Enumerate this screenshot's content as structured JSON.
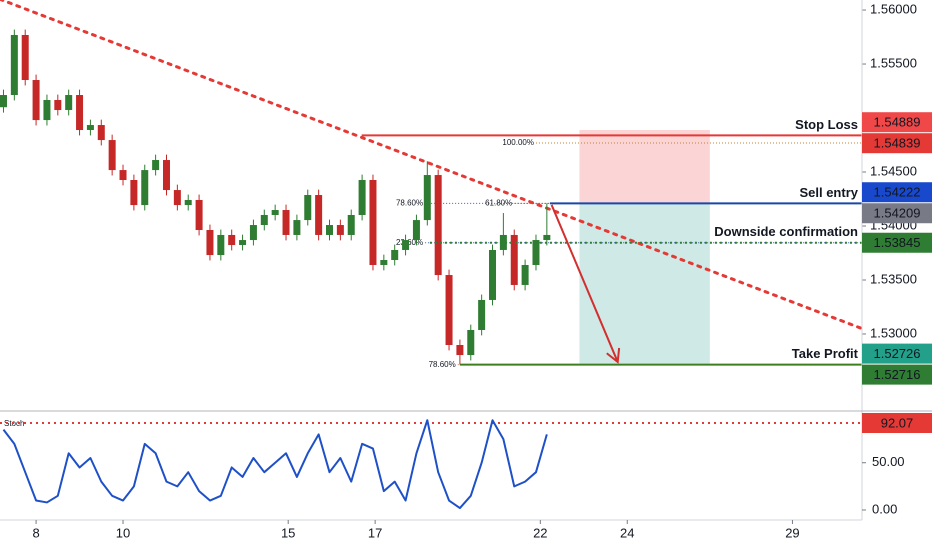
{
  "chart_data": {
    "type": "candlestick",
    "x": [
      -0.75,
      -0.5,
      -0.25,
      0,
      0.25,
      0.5,
      0.75,
      1,
      1.25,
      1.5,
      1.75,
      2,
      2.25,
      2.5,
      2.75,
      3,
      3.25,
      3.5,
      3.75,
      4,
      4.25,
      4.5,
      4.75,
      5,
      5.25,
      5.5,
      5.75,
      6,
      6.25,
      6.5,
      6.75,
      7,
      7.25,
      7.5,
      7.75,
      8,
      8.25,
      8.5,
      8.75,
      9,
      9.25,
      9.5,
      9.75,
      10,
      10.25,
      10.5,
      10.75,
      11,
      11.25,
      11.5,
      11.75
    ],
    "open": [
      1.551,
      1.55213,
      1.55769,
      1.55352,
      1.54981,
      1.55167,
      1.55074,
      1.55213,
      1.54889,
      1.54935,
      1.54796,
      1.54518,
      1.54426,
      1.54194,
      1.54518,
      1.54611,
      1.54333,
      1.54194,
      1.54241,
      1.53963,
      1.53731,
      1.53917,
      1.53824,
      1.5387,
      1.54009,
      1.54102,
      1.54148,
      1.53917,
      1.54055,
      1.54287,
      1.53917,
      1.54009,
      1.53917,
      1.54102,
      1.54426,
      1.53639,
      1.53685,
      1.53778,
      1.5387,
      1.54055,
      1.54472,
      1.53546,
      1.52898,
      1.52805,
      1.53037,
      1.53315,
      1.53778,
      1.53917,
      1.53454,
      1.53639,
      1.5387
    ],
    "high": [
      1.55263,
      1.55819,
      1.55819,
      1.55402,
      1.55217,
      1.55217,
      1.55263,
      1.55263,
      1.54985,
      1.54985,
      1.54846,
      1.54568,
      1.54476,
      1.54568,
      1.54661,
      1.54661,
      1.54383,
      1.54291,
      1.54291,
      1.54013,
      1.53967,
      1.53967,
      1.5392,
      1.54059,
      1.54152,
      1.54198,
      1.54198,
      1.54105,
      1.54337,
      1.54337,
      1.54059,
      1.54059,
      1.54152,
      1.54476,
      1.54476,
      1.53735,
      1.53828,
      1.5392,
      1.54105,
      1.546,
      1.54522,
      1.53596,
      1.52948,
      1.53087,
      1.53365,
      1.53828,
      1.5412,
      1.53967,
      1.53689,
      1.5392,
      1.54209
    ],
    "low": [
      1.5505,
      1.55163,
      1.55302,
      1.54931,
      1.54931,
      1.55024,
      1.55024,
      1.54839,
      1.54839,
      1.54746,
      1.54468,
      1.54376,
      1.54144,
      1.54144,
      1.54468,
      1.54283,
      1.54144,
      1.54144,
      1.53913,
      1.53681,
      1.53681,
      1.53774,
      1.53774,
      1.5382,
      1.53959,
      1.54052,
      1.53867,
      1.53867,
      1.54005,
      1.53867,
      1.53867,
      1.53867,
      1.53867,
      1.54052,
      1.53589,
      1.53589,
      1.53635,
      1.53728,
      1.5382,
      1.54005,
      1.53496,
      1.52848,
      1.52716,
      1.52755,
      1.52987,
      1.53265,
      1.53728,
      1.53404,
      1.53404,
      1.53589,
      1.5382
    ],
    "close": [
      1.55213,
      1.55769,
      1.55352,
      1.54981,
      1.55167,
      1.55074,
      1.55213,
      1.54889,
      1.54935,
      1.54796,
      1.54518,
      1.54426,
      1.54194,
      1.54518,
      1.54611,
      1.54333,
      1.54194,
      1.54241,
      1.53963,
      1.53731,
      1.53917,
      1.53824,
      1.5387,
      1.54009,
      1.54102,
      1.54148,
      1.53917,
      1.54055,
      1.54287,
      1.53917,
      1.54009,
      1.53917,
      1.54102,
      1.54426,
      1.53639,
      1.53685,
      1.53778,
      1.5387,
      1.54055,
      1.54472,
      1.53546,
      1.52898,
      1.52805,
      1.53037,
      1.53315,
      1.53778,
      1.53917,
      1.53454,
      1.53639,
      1.5387,
      1.53917
    ],
    "up_color": "#2e7d32",
    "down_color": "#c62828",
    "xlim": [
      -0.83,
      19
    ],
    "ylim": [
      1.52296,
      1.56093
    ],
    "xticks": [
      {
        "value": 0,
        "label": "8"
      },
      {
        "value": 2,
        "label": "10"
      },
      {
        "value": 5.8,
        "label": "15"
      },
      {
        "value": 7.8,
        "label": "17"
      },
      {
        "value": 11.6,
        "label": "22"
      },
      {
        "value": 13.6,
        "label": "24"
      },
      {
        "value": 17.4,
        "label": "29"
      }
    ],
    "yticks": [
      {
        "value": 1.56,
        "label": "1.56000"
      },
      {
        "value": 1.555,
        "label": "1.55500"
      },
      {
        "value": 1.545,
        "label": "1.54500"
      },
      {
        "value": 1.54,
        "label": "1.54000"
      },
      {
        "value": 1.535,
        "label": "1.53500"
      },
      {
        "value": 1.53,
        "label": "1.53000"
      }
    ],
    "trendline": {
      "start": [
        -0.83,
        1.561
      ],
      "end": [
        19,
        1.5305
      ],
      "color": "#e53935"
    },
    "arrow": {
      "start": [
        11.86,
        1.54195
      ],
      "end": [
        13.38,
        1.52741
      ],
      "color": "#d32f2f"
    },
    "zones": [
      {
        "x0": 12.5,
        "x1": 15.5,
        "from": 1.54209,
        "to": 1.54889,
        "color": "#fbd5d5"
      },
      {
        "x0": 12.5,
        "x1": 15.5,
        "from": 1.52726,
        "to": 1.54209,
        "color": "#cfeae6"
      }
    ],
    "fib": [
      {
        "label": "100.00%",
        "value": 1.54769,
        "x": 11.5,
        "color": "#c77c2e"
      },
      {
        "label": "78.60%",
        "value": 1.54209,
        "x": 8.95,
        "color": "#3a5fa8"
      },
      {
        "label": "61.80%",
        "value": 1.54209,
        "x": 11.0,
        "color": "#c77c2e"
      },
      {
        "label": "23.60%",
        "value": 1.53845,
        "x": 8.95,
        "color": "#3a5fa8"
      },
      {
        "label": "78.60%",
        "value": 1.52716,
        "x": 9.7,
        "color": "#e57373"
      }
    ],
    "levels": [
      {
        "name": "Stop Loss",
        "value": 1.54839,
        "start": 7.49,
        "color": "#e53935",
        "style": "solid"
      },
      {
        "name": "Sell entry",
        "value": 1.54209,
        "start": 11.82,
        "color": "#1848a8",
        "style": "solid"
      },
      {
        "name": "Downside confirmation",
        "value": 1.53845,
        "start": 9.06,
        "color": "#2e7d32",
        "style": "dotted"
      },
      {
        "name": "Take Profit",
        "value": 1.52716,
        "start": 9.75,
        "color": "#3d7f1f",
        "style": "solid"
      }
    ],
    "price_tags": [
      {
        "value": 1.54889,
        "color": "#f04848"
      },
      {
        "value": 1.54839,
        "color": "#e53935"
      },
      {
        "value": 1.54222,
        "color": "#1848cc"
      },
      {
        "value": 1.54209,
        "color": "#787b86"
      },
      {
        "value": 1.53845,
        "color": "#2e7d32"
      },
      {
        "value": 1.52726,
        "color": "#22a08a"
      },
      {
        "value": 1.52716,
        "color": "#2e7d32"
      }
    ],
    "oscillator": {
      "name": "Stoch",
      "values": [
        85,
        70,
        40,
        10,
        8,
        15,
        60,
        45,
        55,
        30,
        15,
        10,
        25,
        70,
        60,
        30,
        25,
        40,
        20,
        10,
        15,
        45,
        35,
        55,
        40,
        50,
        60,
        35,
        60,
        80,
        40,
        55,
        30,
        70,
        65,
        20,
        30,
        10,
        60,
        95,
        40,
        10,
        2,
        15,
        50,
        95,
        75,
        25,
        30,
        40,
        80
      ],
      "color": "#1e50c8",
      "ylim": [
        -10.6,
        103.7
      ],
      "yticks": [
        {
          "value": 50,
          "label": "50.00"
        },
        {
          "value": 0,
          "label": "0.00"
        }
      ],
      "level": {
        "value": 92.07,
        "color": "#e53935"
      }
    }
  }
}
